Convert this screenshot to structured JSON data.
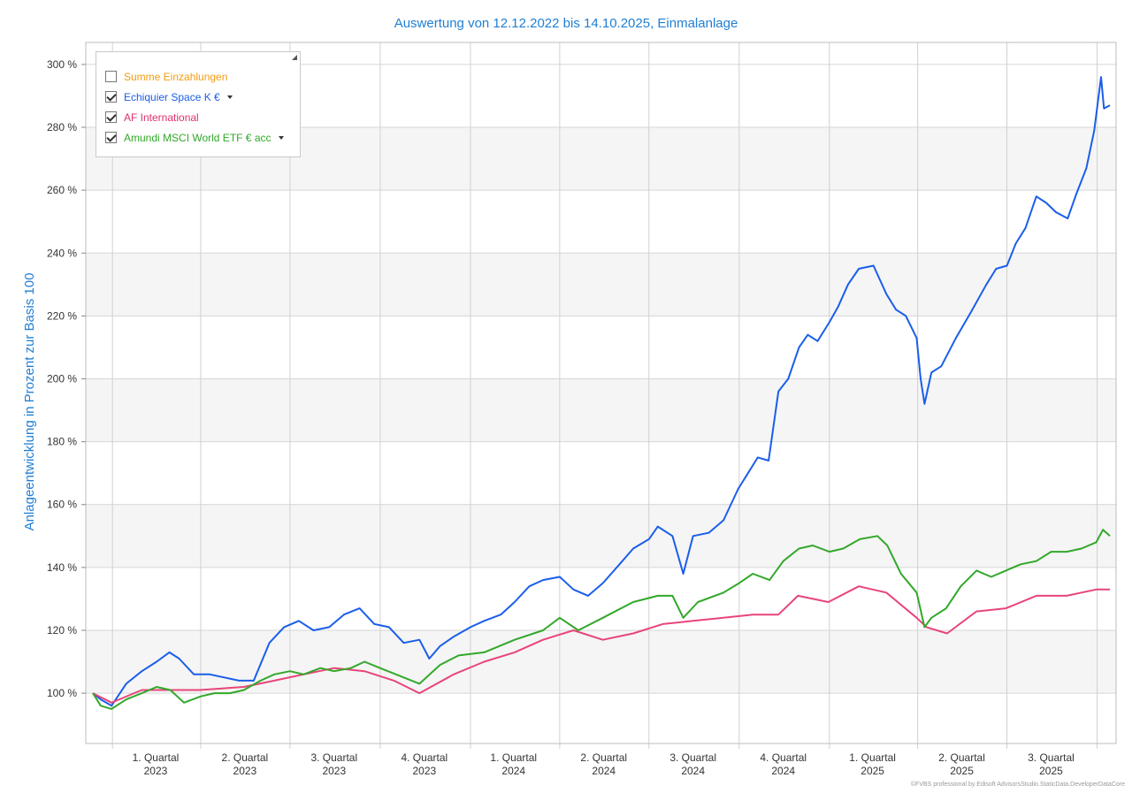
{
  "chart_data": {
    "type": "line",
    "title": "Auswertung von 12.12.2022 bis 14.10.2025, Einmalanlage",
    "ylabel": "Anlageentwicklung  in Prozent zur Basis 100",
    "xlabel": "",
    "ylim": [
      84,
      307
    ],
    "xlim": [
      "2022-12-12",
      "2025-10-14"
    ],
    "grid": true,
    "legend_position": "top-left",
    "y_ticks": [
      100,
      120,
      140,
      160,
      180,
      200,
      220,
      240,
      260,
      280,
      300
    ],
    "y_tick_labels": [
      "100 %",
      "120 %",
      "140 %",
      "160 %",
      "180 %",
      "200 %",
      "220 %",
      "240 %",
      "260 %",
      "280 %",
      "300 %"
    ],
    "x_gridlines": [
      "2023-01-01",
      "2023-04-01",
      "2023-07-01",
      "2023-10-01",
      "2024-01-01",
      "2024-04-01",
      "2024-07-01",
      "2024-10-01",
      "2025-01-01",
      "2025-04-01",
      "2025-07-01",
      "2025-10-01"
    ],
    "quarter_labels": [
      {
        "line1": "1. Quartal",
        "line2": "2023",
        "date": "2023-02-14"
      },
      {
        "line1": "2. Quartal",
        "line2": "2023",
        "date": "2023-05-16"
      },
      {
        "line1": "3. Quartal",
        "line2": "2023",
        "date": "2023-08-15"
      },
      {
        "line1": "4. Quartal",
        "line2": "2023",
        "date": "2023-11-15"
      },
      {
        "line1": "1. Quartal",
        "line2": "2024",
        "date": "2024-02-14"
      },
      {
        "line1": "2. Quartal",
        "line2": "2024",
        "date": "2024-05-16"
      },
      {
        "line1": "3. Quartal",
        "line2": "2024",
        "date": "2024-08-15"
      },
      {
        "line1": "4. Quartal",
        "line2": "2024",
        "date": "2024-11-15"
      },
      {
        "line1": "1. Quartal",
        "line2": "2025",
        "date": "2025-02-14"
      },
      {
        "line1": "2. Quartal",
        "line2": "2025",
        "date": "2025-05-16"
      },
      {
        "line1": "3. Quartal",
        "line2": "2025",
        "date": "2025-08-15"
      }
    ],
    "series": [
      {
        "name": "Echiquier Space K €",
        "color": "#1a5eea",
        "points": [
          [
            "2022-12-12",
            100
          ],
          [
            "2022-12-20",
            98
          ],
          [
            "2022-12-31",
            96
          ],
          [
            "2023-01-15",
            103
          ],
          [
            "2023-01-31",
            107
          ],
          [
            "2023-02-15",
            110
          ],
          [
            "2023-02-28",
            113
          ],
          [
            "2023-03-10",
            111
          ],
          [
            "2023-03-25",
            106
          ],
          [
            "2023-04-10",
            106
          ],
          [
            "2023-04-25",
            105
          ],
          [
            "2023-05-10",
            104
          ],
          [
            "2023-05-25",
            104
          ],
          [
            "2023-06-10",
            116
          ],
          [
            "2023-06-25",
            121
          ],
          [
            "2023-07-10",
            123
          ],
          [
            "2023-07-25",
            120
          ],
          [
            "2023-08-10",
            121
          ],
          [
            "2023-08-25",
            125
          ],
          [
            "2023-09-10",
            127
          ],
          [
            "2023-09-25",
            122
          ],
          [
            "2023-10-10",
            121
          ],
          [
            "2023-10-25",
            116
          ],
          [
            "2023-11-10",
            117
          ],
          [
            "2023-11-20",
            111
          ],
          [
            "2023-12-01",
            115
          ],
          [
            "2023-12-15",
            118
          ],
          [
            "2024-01-01",
            121
          ],
          [
            "2024-01-15",
            123
          ],
          [
            "2024-02-01",
            125
          ],
          [
            "2024-02-15",
            129
          ],
          [
            "2024-03-01",
            134
          ],
          [
            "2024-03-15",
            136
          ],
          [
            "2024-04-01",
            137
          ],
          [
            "2024-04-15",
            133
          ],
          [
            "2024-04-30",
            131
          ],
          [
            "2024-05-15",
            135
          ],
          [
            "2024-06-01",
            141
          ],
          [
            "2024-06-15",
            146
          ],
          [
            "2024-07-01",
            149
          ],
          [
            "2024-07-10",
            153
          ],
          [
            "2024-07-25",
            150
          ],
          [
            "2024-08-05",
            138
          ],
          [
            "2024-08-15",
            150
          ],
          [
            "2024-08-31",
            151
          ],
          [
            "2024-09-15",
            155
          ],
          [
            "2024-09-30",
            165
          ],
          [
            "2024-10-10",
            170
          ],
          [
            "2024-10-20",
            175
          ],
          [
            "2024-10-31",
            174
          ],
          [
            "2024-11-10",
            196
          ],
          [
            "2024-11-20",
            200
          ],
          [
            "2024-12-01",
            210
          ],
          [
            "2024-12-10",
            214
          ],
          [
            "2024-12-20",
            212
          ],
          [
            "2025-01-01",
            218
          ],
          [
            "2025-01-10",
            223
          ],
          [
            "2025-01-20",
            230
          ],
          [
            "2025-01-31",
            235
          ],
          [
            "2025-02-15",
            236
          ],
          [
            "2025-02-28",
            227
          ],
          [
            "2025-03-10",
            222
          ],
          [
            "2025-03-20",
            220
          ],
          [
            "2025-03-31",
            213
          ],
          [
            "2025-04-04",
            200
          ],
          [
            "2025-04-08",
            192
          ],
          [
            "2025-04-15",
            202
          ],
          [
            "2025-04-25",
            204
          ],
          [
            "2025-05-10",
            213
          ],
          [
            "2025-05-25",
            221
          ],
          [
            "2025-06-10",
            230
          ],
          [
            "2025-06-20",
            235
          ],
          [
            "2025-07-01",
            236
          ],
          [
            "2025-07-10",
            243
          ],
          [
            "2025-07-20",
            248
          ],
          [
            "2025-07-31",
            258
          ],
          [
            "2025-08-10",
            256
          ],
          [
            "2025-08-20",
            253
          ],
          [
            "2025-09-01",
            251
          ],
          [
            "2025-09-10",
            259
          ],
          [
            "2025-09-20",
            267
          ],
          [
            "2025-09-28",
            279
          ],
          [
            "2025-10-05",
            296
          ],
          [
            "2025-10-08",
            286
          ],
          [
            "2025-10-14",
            287
          ]
        ]
      },
      {
        "name": "AF International",
        "color": "#e8457a",
        "points": [
          [
            "2022-12-12",
            100
          ],
          [
            "2022-12-31",
            97
          ],
          [
            "2023-01-31",
            101
          ],
          [
            "2023-02-15",
            101
          ],
          [
            "2023-03-31",
            101
          ],
          [
            "2023-05-15",
            102
          ],
          [
            "2023-06-15",
            104
          ],
          [
            "2023-07-15",
            106
          ],
          [
            "2023-08-15",
            108
          ],
          [
            "2023-09-15",
            107
          ],
          [
            "2023-10-15",
            104
          ],
          [
            "2023-11-10",
            100
          ],
          [
            "2023-12-15",
            106
          ],
          [
            "2024-01-15",
            110
          ],
          [
            "2024-02-15",
            113
          ],
          [
            "2024-03-15",
            117
          ],
          [
            "2024-04-15",
            120
          ],
          [
            "2024-05-15",
            117
          ],
          [
            "2024-06-15",
            119
          ],
          [
            "2024-07-15",
            122
          ],
          [
            "2024-08-15",
            123
          ],
          [
            "2024-09-15",
            124
          ],
          [
            "2024-10-15",
            125
          ],
          [
            "2024-11-10",
            125
          ],
          [
            "2024-11-30",
            131
          ],
          [
            "2024-12-31",
            129
          ],
          [
            "2025-01-31",
            134
          ],
          [
            "2025-02-28",
            132
          ],
          [
            "2025-03-31",
            124
          ],
          [
            "2025-04-10",
            121
          ],
          [
            "2025-05-01",
            119
          ],
          [
            "2025-05-31",
            126
          ],
          [
            "2025-06-30",
            127
          ],
          [
            "2025-07-31",
            131
          ],
          [
            "2025-08-31",
            131
          ],
          [
            "2025-09-30",
            133
          ],
          [
            "2025-10-14",
            133
          ]
        ]
      },
      {
        "name": "Amundi MSCI World ETF € acc",
        "color": "#32a82a",
        "points": [
          [
            "2022-12-12",
            100
          ],
          [
            "2022-12-20",
            96
          ],
          [
            "2022-12-31",
            95
          ],
          [
            "2023-01-15",
            98
          ],
          [
            "2023-01-31",
            100
          ],
          [
            "2023-02-15",
            102
          ],
          [
            "2023-03-01",
            101
          ],
          [
            "2023-03-15",
            97
          ],
          [
            "2023-04-01",
            99
          ],
          [
            "2023-04-15",
            100
          ],
          [
            "2023-05-01",
            100
          ],
          [
            "2023-05-15",
            101
          ],
          [
            "2023-06-01",
            104
          ],
          [
            "2023-06-15",
            106
          ],
          [
            "2023-07-01",
            107
          ],
          [
            "2023-07-15",
            106
          ],
          [
            "2023-08-01",
            108
          ],
          [
            "2023-08-15",
            107
          ],
          [
            "2023-09-01",
            108
          ],
          [
            "2023-09-15",
            110
          ],
          [
            "2023-10-01",
            108
          ],
          [
            "2023-10-25",
            105
          ],
          [
            "2023-11-10",
            103
          ],
          [
            "2023-12-01",
            109
          ],
          [
            "2023-12-20",
            112
          ],
          [
            "2024-01-15",
            113
          ],
          [
            "2024-02-15",
            117
          ],
          [
            "2024-03-15",
            120
          ],
          [
            "2024-04-01",
            124
          ],
          [
            "2024-04-20",
            120
          ],
          [
            "2024-05-15",
            124
          ],
          [
            "2024-06-15",
            129
          ],
          [
            "2024-07-10",
            131
          ],
          [
            "2024-07-25",
            131
          ],
          [
            "2024-08-05",
            124
          ],
          [
            "2024-08-20",
            129
          ],
          [
            "2024-09-15",
            132
          ],
          [
            "2024-10-01",
            135
          ],
          [
            "2024-10-15",
            138
          ],
          [
            "2024-11-01",
            136
          ],
          [
            "2024-11-15",
            142
          ],
          [
            "2024-12-01",
            146
          ],
          [
            "2024-12-15",
            147
          ],
          [
            "2025-01-01",
            145
          ],
          [
            "2025-01-15",
            146
          ],
          [
            "2025-02-01",
            149
          ],
          [
            "2025-02-19",
            150
          ],
          [
            "2025-03-01",
            147
          ],
          [
            "2025-03-15",
            138
          ],
          [
            "2025-03-31",
            132
          ],
          [
            "2025-04-08",
            121
          ],
          [
            "2025-04-15",
            124
          ],
          [
            "2025-04-30",
            127
          ],
          [
            "2025-05-15",
            134
          ],
          [
            "2025-05-31",
            139
          ],
          [
            "2025-06-15",
            137
          ],
          [
            "2025-06-30",
            139
          ],
          [
            "2025-07-15",
            141
          ],
          [
            "2025-07-31",
            142
          ],
          [
            "2025-08-15",
            145
          ],
          [
            "2025-08-31",
            145
          ],
          [
            "2025-09-15",
            146
          ],
          [
            "2025-09-30",
            148
          ],
          [
            "2025-10-07",
            152
          ],
          [
            "2025-10-14",
            150
          ]
        ]
      }
    ]
  },
  "legend": {
    "items": [
      {
        "label": "Summe Einzahlungen",
        "color": "#f39c12",
        "checked": false,
        "dropdown": false
      },
      {
        "label": "Echiquier Space K €",
        "color": "#1a5eea",
        "checked": true,
        "dropdown": true
      },
      {
        "label": "AF International",
        "color": "#e0306c",
        "checked": true,
        "dropdown": false
      },
      {
        "label": "Amundi MSCI World ETF € acc",
        "color": "#32a82a",
        "checked": true,
        "dropdown": true
      }
    ]
  },
  "footer": "©FVBS professional by Edisoft AdvisorsStudio.StaticData.DeveloperDataCore"
}
